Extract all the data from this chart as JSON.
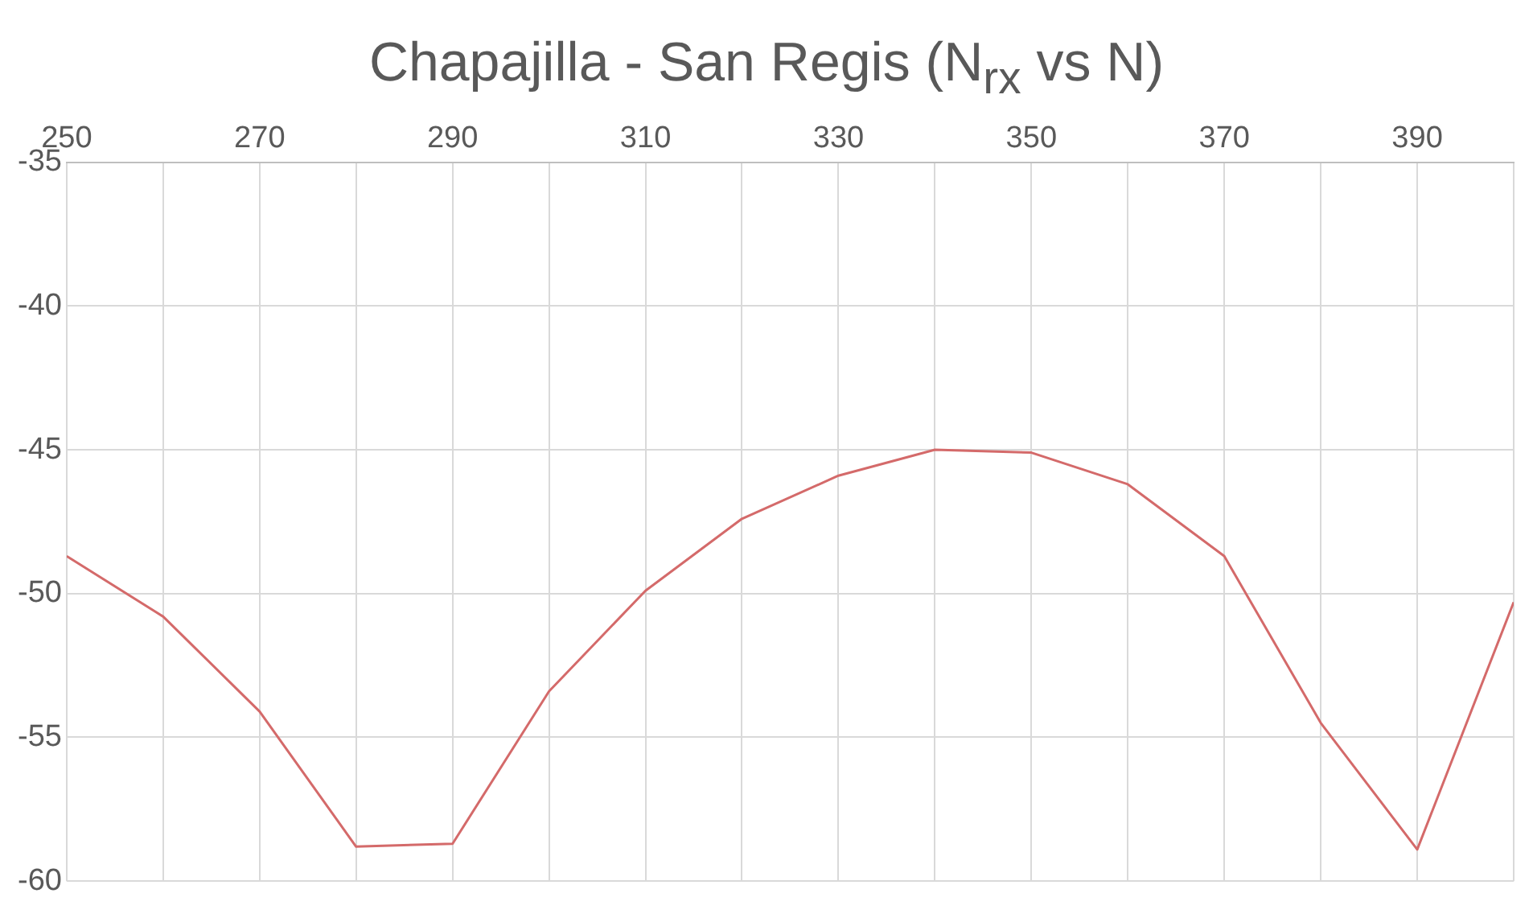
{
  "chart_data": {
    "type": "line",
    "title": "Chapajilla - San Regis (N$_{rx}$ vs N)",
    "x": [
      250,
      260,
      270,
      280,
      290,
      300,
      310,
      320,
      330,
      340,
      350,
      360,
      370,
      380,
      390,
      400
    ],
    "series": [
      {
        "color": "#d46a6a",
        "values": [
          -48.7,
          -50.8,
          -54.1,
          -58.8,
          -58.7,
          -53.4,
          -49.9,
          -47.4,
          -45.9,
          -45.0,
          -45.1,
          -46.2,
          -48.7,
          -54.5,
          -58.9,
          -50.3
        ]
      }
    ],
    "xlim": [
      250,
      400
    ],
    "xticks": [
      250,
      {
        "value": 260,
        "label": null
      },
      270,
      {
        "value": 280,
        "label": null
      },
      290,
      {
        "value": 300,
        "label": null
      },
      310,
      {
        "value": 320,
        "label": null
      },
      330,
      {
        "value": 340,
        "label": null
      },
      350,
      {
        "value": 360,
        "label": null
      },
      370,
      {
        "value": 380,
        "label": null
      },
      390,
      {
        "value": 400,
        "label": null
      }
    ],
    "ylim": [
      -60,
      -35
    ],
    "yticks": [
      -60,
      -55,
      -50,
      -45,
      -40,
      -35
    ],
    "grid": true,
    "legend": false,
    "marker": "none",
    "line_style": "solid"
  }
}
